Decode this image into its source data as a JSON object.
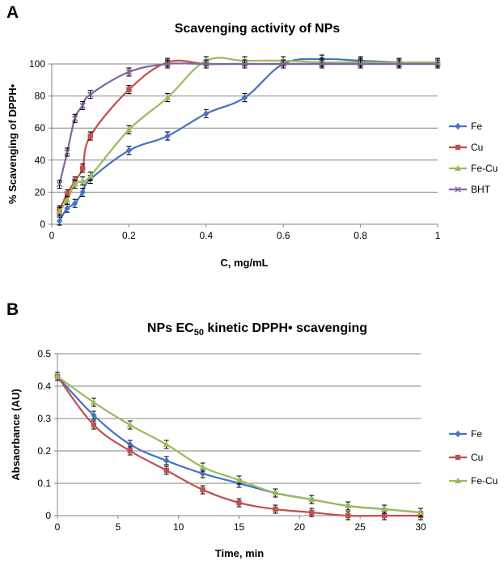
{
  "chart_data": [
    {
      "panel": "A",
      "type": "line",
      "title": "Scavenging activity of NPs",
      "xlabel": "C, mg/mL",
      "ylabel": "% Scavenging of DPPH•",
      "xlim": [
        0,
        1
      ],
      "ylim": [
        0,
        100
      ],
      "xticks": [
        "0",
        "0.2",
        "0.4",
        "0.6",
        "0.8",
        "1"
      ],
      "yticks": [
        "0",
        "20",
        "40",
        "60",
        "80",
        "100"
      ],
      "grid": "horizontal",
      "legend_position": "right",
      "series": [
        {
          "name": "Fe",
          "color": "#4472C4",
          "marker": "diamond",
          "x": [
            0.02,
            0.04,
            0.06,
            0.08,
            0.1,
            0.2,
            0.3,
            0.4,
            0.5,
            0.6,
            0.7,
            0.8,
            0.9,
            1.0
          ],
          "y": [
            2,
            10,
            13,
            20,
            28,
            46,
            55,
            69,
            79,
            100,
            103,
            102,
            101,
            100
          ]
        },
        {
          "name": "Cu",
          "color": "#C0504D",
          "marker": "square",
          "x": [
            0.02,
            0.04,
            0.06,
            0.08,
            0.1,
            0.2,
            0.3,
            0.4,
            0.5,
            0.6,
            0.7,
            0.8,
            0.9,
            1.0
          ],
          "y": [
            9,
            19,
            27,
            35,
            55,
            84,
            101,
            100,
            100,
            100,
            100,
            100,
            100,
            100
          ]
        },
        {
          "name": "Fe-Cu",
          "color": "#9BBB59",
          "marker": "triangle",
          "x": [
            0.02,
            0.04,
            0.06,
            0.08,
            0.1,
            0.2,
            0.3,
            0.4,
            0.5,
            0.6,
            0.7,
            0.8,
            0.9,
            1.0
          ],
          "y": [
            8,
            15,
            25,
            27,
            30,
            59,
            79,
            102,
            102,
            102,
            101,
            101,
            101,
            101
          ]
        },
        {
          "name": "BHT",
          "color": "#8064A2",
          "marker": "x",
          "x": [
            0.02,
            0.04,
            0.06,
            0.08,
            0.1,
            0.2,
            0.3,
            0.4,
            0.5,
            0.6,
            0.7,
            0.8,
            0.9,
            1.0
          ],
          "y": [
            25,
            45,
            66,
            74,
            81,
            95,
            100,
            100,
            100,
            100,
            100,
            100,
            100,
            100
          ]
        }
      ]
    },
    {
      "panel": "B",
      "type": "line",
      "title": "NPs EC50 kinetic DPPH• scavenging",
      "xlabel": "Time, min",
      "ylabel": "Absaorbance  (AU)",
      "xlim": [
        0,
        30
      ],
      "ylim": [
        0,
        0.5
      ],
      "xticks": [
        "0",
        "5",
        "10",
        "15",
        "20",
        "25",
        "30"
      ],
      "yticks": [
        "0",
        "0.1",
        "0.2",
        "0.3",
        "0.4",
        "0.5"
      ],
      "grid": "horizontal",
      "legend_position": "right",
      "series": [
        {
          "name": "Fe",
          "color": "#4472C4",
          "marker": "diamond",
          "x": [
            0,
            3,
            6,
            9,
            12,
            15,
            18,
            21,
            24,
            27,
            30
          ],
          "y": [
            0.43,
            0.31,
            0.22,
            0.17,
            0.13,
            0.1,
            0.07,
            0.05,
            0.03,
            0.02,
            0.01
          ]
        },
        {
          "name": "Cu",
          "color": "#C0504D",
          "marker": "square",
          "x": [
            0,
            3,
            6,
            9,
            12,
            15,
            18,
            21,
            24,
            27,
            30
          ],
          "y": [
            0.43,
            0.28,
            0.2,
            0.14,
            0.08,
            0.04,
            0.02,
            0.01,
            0.0,
            0.0,
            0.0
          ]
        },
        {
          "name": "Fe-Cu",
          "color": "#9BBB59",
          "marker": "triangle",
          "x": [
            0,
            3,
            6,
            9,
            12,
            15,
            18,
            21,
            24,
            27,
            30
          ],
          "y": [
            0.43,
            0.35,
            0.28,
            0.22,
            0.15,
            0.11,
            0.07,
            0.05,
            0.03,
            0.02,
            0.01
          ]
        }
      ]
    }
  ],
  "panels": {
    "a": {
      "letter": "A",
      "title": "Scavenging activity of NPs",
      "xlabel": "C, mg/mL",
      "ylabel": "% Scavenging of DPPH•"
    },
    "b": {
      "letter": "B",
      "title_pre": "NPs EC",
      "title_sub": "50",
      "title_post": " kinetic DPPH• scavenging",
      "xlabel": "Time, min",
      "ylabel": "Absaorbance  (AU)"
    }
  }
}
